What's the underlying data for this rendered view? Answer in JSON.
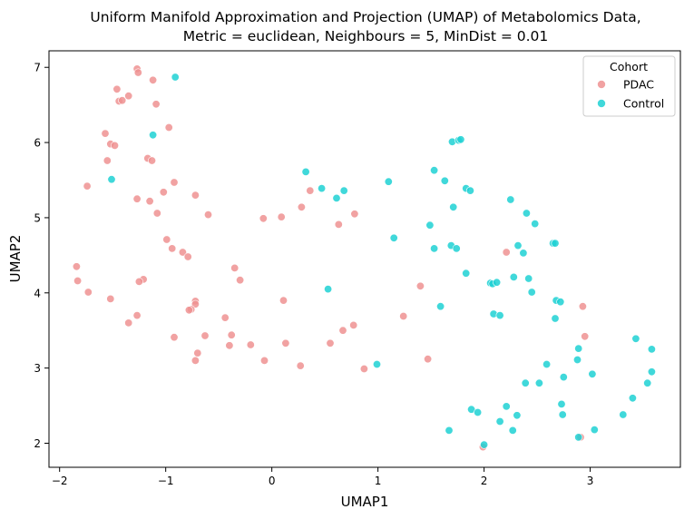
{
  "chart_data": {
    "type": "scatter",
    "title": "Uniform Manifold Approximation and Projection (UMAP) of Metabolomics Data,",
    "subtitle": "Metric = euclidean, Neighbours = 5, MinDist = 0.01",
    "xlabel": "UMAP1",
    "ylabel": "UMAP2",
    "xlim": [
      -2.1,
      3.85
    ],
    "ylim": [
      1.68,
      7.22
    ],
    "xticks": [
      -2,
      -1,
      0,
      1,
      2,
      3
    ],
    "yticks": [
      2,
      3,
      4,
      5,
      6,
      7
    ],
    "xtick_labels": [
      "−2",
      "−1",
      "0",
      "1",
      "2",
      "3"
    ],
    "ytick_labels": [
      "2",
      "3",
      "4",
      "5",
      "6",
      "7"
    ],
    "grid": false,
    "legend": {
      "title": "Cohort",
      "position": "top-right"
    },
    "series": [
      {
        "name": "PDAC",
        "color": "#ee9292",
        "points": [
          [
            -1.27,
            6.98
          ],
          [
            -1.26,
            6.93
          ],
          [
            -1.12,
            6.83
          ],
          [
            -1.46,
            6.71
          ],
          [
            -1.35,
            6.62
          ],
          [
            -1.44,
            6.55
          ],
          [
            -1.41,
            6.56
          ],
          [
            -1.09,
            6.51
          ],
          [
            -0.97,
            6.2
          ],
          [
            -1.57,
            6.12
          ],
          [
            -1.52,
            5.98
          ],
          [
            -1.48,
            5.96
          ],
          [
            -1.55,
            5.76
          ],
          [
            -1.17,
            5.79
          ],
          [
            -1.13,
            5.76
          ],
          [
            -0.92,
            5.47
          ],
          [
            -1.74,
            5.42
          ],
          [
            -1.02,
            5.34
          ],
          [
            -0.72,
            5.3
          ],
          [
            -1.27,
            5.25
          ],
          [
            -1.15,
            5.22
          ],
          [
            -1.08,
            5.06
          ],
          [
            -0.6,
            5.04
          ],
          [
            -0.08,
            4.99
          ],
          [
            0.09,
            5.01
          ],
          [
            0.28,
            5.14
          ],
          [
            0.36,
            5.36
          ],
          [
            0.63,
            4.91
          ],
          [
            0.78,
            5.05
          ],
          [
            -0.99,
            4.71
          ],
          [
            -0.94,
            4.59
          ],
          [
            -0.84,
            4.54
          ],
          [
            -0.79,
            4.48
          ],
          [
            -1.84,
            4.35
          ],
          [
            -0.35,
            4.33
          ],
          [
            -1.83,
            4.16
          ],
          [
            -1.21,
            4.18
          ],
          [
            -1.25,
            4.15
          ],
          [
            -0.3,
            4.17
          ],
          [
            -1.73,
            4.01
          ],
          [
            -1.52,
            3.92
          ],
          [
            -0.72,
            3.89
          ],
          [
            -0.72,
            3.85
          ],
          [
            0.11,
            3.9
          ],
          [
            -0.76,
            3.78
          ],
          [
            -0.78,
            3.77
          ],
          [
            -1.27,
            3.7
          ],
          [
            -1.35,
            3.6
          ],
          [
            -0.44,
            3.67
          ],
          [
            -0.63,
            3.43
          ],
          [
            -0.38,
            3.44
          ],
          [
            -0.92,
            3.41
          ],
          [
            -0.7,
            3.2
          ],
          [
            -0.72,
            3.1
          ],
          [
            -0.4,
            3.3
          ],
          [
            -0.2,
            3.31
          ],
          [
            0.13,
            3.33
          ],
          [
            0.55,
            3.33
          ],
          [
            0.67,
            3.5
          ],
          [
            0.77,
            3.57
          ],
          [
            -0.07,
            3.1
          ],
          [
            0.27,
            3.03
          ],
          [
            0.87,
            2.99
          ],
          [
            1.24,
            3.69
          ],
          [
            1.4,
            4.09
          ],
          [
            1.47,
            3.12
          ],
          [
            2.21,
            4.54
          ],
          [
            2.93,
            3.82
          ],
          [
            2.95,
            3.42
          ],
          [
            2.91,
            2.08
          ],
          [
            1.99,
            1.95
          ]
        ]
      },
      {
        "name": "Control",
        "color": "#1fd1d4",
        "points": [
          [
            -0.91,
            6.87
          ],
          [
            -1.12,
            6.1
          ],
          [
            -1.51,
            5.51
          ],
          [
            0.32,
            5.61
          ],
          [
            0.47,
            5.39
          ],
          [
            0.61,
            5.26
          ],
          [
            0.68,
            5.36
          ],
          [
            1.1,
            5.48
          ],
          [
            1.15,
            4.73
          ],
          [
            0.53,
            4.05
          ],
          [
            0.99,
            3.05
          ],
          [
            1.7,
            6.01
          ],
          [
            1.76,
            6.03
          ],
          [
            1.78,
            6.04
          ],
          [
            1.53,
            5.63
          ],
          [
            1.63,
            5.49
          ],
          [
            1.83,
            5.39
          ],
          [
            1.87,
            5.36
          ],
          [
            2.25,
            5.24
          ],
          [
            1.71,
            5.14
          ],
          [
            2.4,
            5.06
          ],
          [
            1.49,
            4.9
          ],
          [
            2.48,
            4.92
          ],
          [
            1.53,
            4.59
          ],
          [
            1.69,
            4.63
          ],
          [
            1.74,
            4.59
          ],
          [
            2.65,
            4.66
          ],
          [
            2.67,
            4.66
          ],
          [
            2.32,
            4.63
          ],
          [
            2.37,
            4.53
          ],
          [
            1.83,
            4.26
          ],
          [
            2.06,
            4.13
          ],
          [
            2.08,
            4.12
          ],
          [
            2.12,
            4.14
          ],
          [
            2.28,
            4.21
          ],
          [
            2.42,
            4.19
          ],
          [
            2.45,
            4.01
          ],
          [
            1.59,
            3.82
          ],
          [
            2.68,
            3.9
          ],
          [
            2.72,
            3.88
          ],
          [
            2.09,
            3.72
          ],
          [
            2.15,
            3.7
          ],
          [
            2.67,
            3.66
          ],
          [
            2.89,
            3.26
          ],
          [
            2.59,
            3.05
          ],
          [
            2.88,
            3.11
          ],
          [
            2.75,
            2.88
          ],
          [
            3.02,
            2.92
          ],
          [
            3.43,
            3.39
          ],
          [
            3.58,
            3.25
          ],
          [
            3.58,
            2.95
          ],
          [
            3.54,
            2.8
          ],
          [
            2.39,
            2.8
          ],
          [
            2.52,
            2.8
          ],
          [
            3.4,
            2.6
          ],
          [
            1.88,
            2.45
          ],
          [
            1.94,
            2.41
          ],
          [
            2.21,
            2.49
          ],
          [
            2.31,
            2.37
          ],
          [
            2.73,
            2.52
          ],
          [
            2.74,
            2.38
          ],
          [
            3.31,
            2.38
          ],
          [
            2.15,
            2.29
          ],
          [
            2.27,
            2.17
          ],
          [
            1.67,
            2.17
          ],
          [
            3.04,
            2.18
          ],
          [
            2.89,
            2.08
          ],
          [
            2.0,
            1.98
          ]
        ]
      }
    ]
  }
}
